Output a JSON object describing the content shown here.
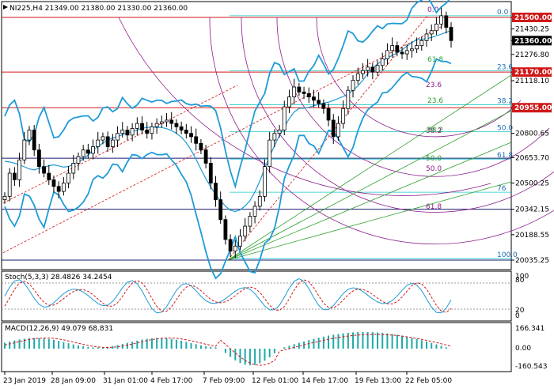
{
  "colors": {
    "up": "#000000",
    "down": "#000000",
    "bollinger": "#1e9bd7",
    "fib_fan": "#2aa02a",
    "fib_arcs": "#8b1a8b",
    "fib_retrace": "#1ec8c8",
    "trend_channel": "#d01818",
    "horizontal_red": "#d01818",
    "horizontal_blue": "#1a1a6e",
    "stoch_main": "#1e9bd7",
    "stoch_signal": "#d01818",
    "macd_hist": "#20a8a8",
    "macd_signal": "#d01818",
    "label_bg_red": "#d01818"
  },
  "panels": {
    "main": {
      "title": "NI225,H4  21349.00  21380.00  21330.00  21360.00",
      "y_ticks": [
        "21500.00",
        "21430.25",
        "21360.00",
        "21276.80",
        "21170.00",
        "21118.10",
        "20955.00",
        "20800.65",
        "20653.70",
        "20500.25",
        "20342.15",
        "20188.55",
        "20035.25"
      ],
      "y_values": [
        21500,
        21430.25,
        21360,
        21276.8,
        21170,
        21118.1,
        20955,
        20800.65,
        20653.7,
        20500.25,
        20342.15,
        20188.55,
        20035.25
      ],
      "price_labels": [
        {
          "text": "21500.00",
          "value": 21500,
          "style": "red"
        },
        {
          "text": "21360.00",
          "value": 21360,
          "style": "black"
        },
        {
          "text": "21170.00",
          "value": 21170,
          "style": "red"
        },
        {
          "text": "20955.00",
          "value": 20955,
          "style": "red"
        }
      ],
      "horizontal_lines": [
        {
          "value": 21500,
          "color": "red"
        },
        {
          "value": 21170,
          "color": "red"
        },
        {
          "value": 20955,
          "color": "red"
        },
        {
          "value": 20650,
          "color": "blue"
        },
        {
          "value": 20342.15,
          "color": "blue"
        },
        {
          "value": 20035.25,
          "color": "blue"
        }
      ],
      "fib_retrace_labels": [
        "0.0",
        "23.6",
        "38.2",
        "50.0",
        "61.8",
        "76",
        "100.0"
      ],
      "fib_retrace_values": [
        21510,
        21178,
        20973,
        20810,
        20645,
        20445,
        20045
      ],
      "fib_arc_labels": [
        "0.0",
        "23.6",
        "38.2",
        "50.0",
        "61.8"
      ],
      "fib_fan_labels": [
        "23.6",
        "38.2",
        "50.0",
        "61.8"
      ]
    },
    "stoch": {
      "title": "Stoch(5,3,3)  28.4826  34.2454",
      "levels": [
        "100",
        "80",
        "20",
        "0"
      ]
    },
    "macd": {
      "title": "MACD(12,26,9)  49.079  68.831",
      "levels": [
        "166.341",
        "0.00",
        "-160.543"
      ]
    }
  },
  "x_labels": [
    "23 Jan 2019",
    "28 Jan 09:00",
    "31 Jan 01:00",
    "4 Feb 17:00",
    "7 Feb 09:00",
    "12 Feb 01:00",
    "14 Feb 17:00",
    "19 Feb 13:00",
    "22 Feb 05:00"
  ],
  "chart_data": {
    "type": "candlestick",
    "title": "NI225,H4",
    "ohlc_last": {
      "open": 21349.0,
      "high": 21380.0,
      "low": 21330.0,
      "close": 21360.0
    },
    "close_series": [
      20420,
      20560,
      20520,
      20640,
      20760,
      20820,
      20700,
      20600,
      20560,
      20520,
      20480,
      20450,
      20500,
      20560,
      20620,
      20660,
      20700,
      20680,
      20720,
      20760,
      20780,
      20720,
      20760,
      20800,
      20820,
      20790,
      20830,
      20860,
      20820,
      20800,
      20840,
      20860,
      20870,
      20880,
      20860,
      20840,
      20820,
      20800,
      20780,
      20740,
      20700,
      20620,
      20500,
      20400,
      20280,
      20160,
      20090,
      20120,
      20180,
      20240,
      20300,
      20360,
      20420,
      20600,
      20760,
      20800,
      20820,
      20960,
      21020,
      21080,
      21050,
      21040,
      21020,
      21000,
      20980,
      20950,
      20880,
      20780,
      20860,
      20950,
      21060,
      21120,
      21160,
      21180,
      21200,
      21170,
      21210,
      21250,
      21300,
      21330,
      21290,
      21280,
      21300,
      21310,
      21330,
      21360,
      21400,
      21420,
      21460,
      21510,
      21440,
      21360
    ],
    "stoch": {
      "main_last": 28.4826,
      "signal_last": 34.2454,
      "levels": [
        100,
        80,
        20,
        0
      ]
    },
    "macd": {
      "main_last": 49.079,
      "signal_last": 68.831,
      "range": [
        -160.543,
        166.341
      ]
    }
  }
}
